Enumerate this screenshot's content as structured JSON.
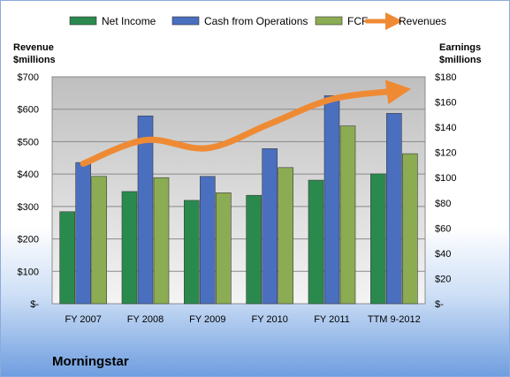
{
  "chart_data": {
    "type": "bar",
    "title": "Morningstar",
    "categories": [
      "FY 2007",
      "FY 2008",
      "FY 2009",
      "FY 2010",
      "FY 2011",
      "TTM 9-2012"
    ],
    "left_axis": {
      "label_line1": "Revenue",
      "label_line2": "$millions",
      "range": [
        0,
        700
      ],
      "ticks": [
        {
          "value": 0,
          "label": "$-"
        },
        {
          "value": 100,
          "label": "$100"
        },
        {
          "value": 200,
          "label": "$200"
        },
        {
          "value": 300,
          "label": "$300"
        },
        {
          "value": 400,
          "label": "$400"
        },
        {
          "value": 500,
          "label": "$500"
        },
        {
          "value": 600,
          "label": "$600"
        },
        {
          "value": 700,
          "label": "$700"
        }
      ]
    },
    "right_axis": {
      "label_line1": "Earnings",
      "label_line2": "$millions",
      "range": [
        0,
        180
      ],
      "ticks": [
        {
          "value": 0,
          "label": "$-"
        },
        {
          "value": 20,
          "label": "$20"
        },
        {
          "value": 40,
          "label": "$40"
        },
        {
          "value": 60,
          "label": "$60"
        },
        {
          "value": 80,
          "label": "$80"
        },
        {
          "value": 100,
          "label": "$100"
        },
        {
          "value": 120,
          "label": "$120"
        },
        {
          "value": 140,
          "label": "$140"
        },
        {
          "value": 160,
          "label": "$160"
        },
        {
          "value": 180,
          "label": "$180"
        }
      ]
    },
    "series": [
      {
        "name": "Net Income",
        "type": "bar",
        "axis": "right",
        "color": "#2a8a4e",
        "values": [
          73,
          89,
          82,
          86,
          98,
          103
        ]
      },
      {
        "name": "Cash from Operations",
        "type": "bar",
        "axis": "right",
        "color": "#4a6fbf",
        "values": [
          112,
          149,
          101,
          123,
          165,
          151
        ]
      },
      {
        "name": "FCF",
        "type": "bar",
        "axis": "right",
        "color": "#8bac52",
        "values": [
          101,
          100,
          88,
          108,
          141,
          119
        ]
      },
      {
        "name": "Revenues",
        "type": "line",
        "axis": "left",
        "color": "#ef8a34",
        "values": [
          432,
          505,
          480,
          555,
          631,
          656
        ]
      }
    ],
    "legend_placement": "top",
    "grid": true
  }
}
